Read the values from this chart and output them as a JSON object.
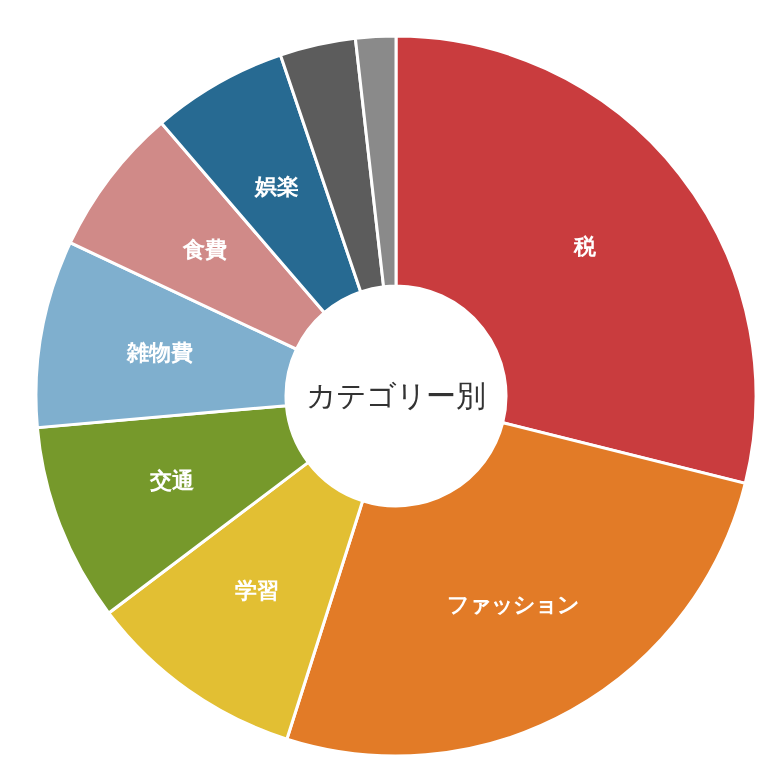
{
  "chart_data": {
    "type": "donut",
    "title": "カテゴリー別",
    "categories": [
      "税",
      "ファッション",
      "学習",
      "交通",
      "雑物費",
      "食費",
      "娯楽",
      null,
      null
    ],
    "values": [
      28.9,
      26,
      9.8,
      8.9,
      8.4,
      6.7,
      6.1,
      3.4,
      1.8
    ],
    "colors": [
      "#c93c3e",
      "#e27b27",
      "#e2bf33",
      "#76992b",
      "#7fafce",
      "#d08a88",
      "#276a92",
      "#5c5c5c",
      "#8a8a8a"
    ],
    "legend": false
  }
}
